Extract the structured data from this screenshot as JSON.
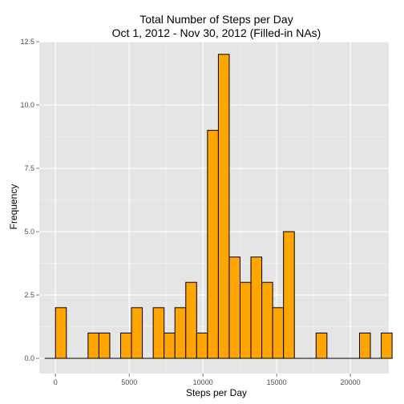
{
  "chart_data": {
    "type": "bar",
    "title": "Total Number of Steps per Day",
    "subtitle": "Oct 1, 2012 - Nov 30, 2012 (Filled-in NAs)",
    "xlabel": "Steps per Day",
    "ylabel": "Frequency",
    "xlim": [
      -1100,
      22600
    ],
    "ylim": [
      -0.6,
      12.5
    ],
    "bin_width": 736.25,
    "x_ticks": [
      0,
      5000,
      10000,
      15000,
      20000
    ],
    "x_tick_labels": [
      "0",
      "5000",
      "10000",
      "15000",
      "20000"
    ],
    "y_ticks": [
      0.0,
      2.5,
      5.0,
      7.5,
      10.0,
      12.5
    ],
    "y_tick_labels": [
      "0.0",
      "2.5",
      "5.0",
      "7.5",
      "10.0",
      "12.5"
    ],
    "bins": [
      {
        "x": -368,
        "count": 0
      },
      {
        "x": 368,
        "count": 2
      },
      {
        "x": 1105,
        "count": 0
      },
      {
        "x": 1841,
        "count": 0
      },
      {
        "x": 2577,
        "count": 1
      },
      {
        "x": 3313,
        "count": 1
      },
      {
        "x": 4050,
        "count": 0
      },
      {
        "x": 4786,
        "count": 1
      },
      {
        "x": 5522,
        "count": 2
      },
      {
        "x": 6258,
        "count": 0
      },
      {
        "x": 6995,
        "count": 2
      },
      {
        "x": 7731,
        "count": 1
      },
      {
        "x": 8467,
        "count": 2
      },
      {
        "x": 9204,
        "count": 3
      },
      {
        "x": 9940,
        "count": 1
      },
      {
        "x": 10676,
        "count": 9
      },
      {
        "x": 11412,
        "count": 12
      },
      {
        "x": 12149,
        "count": 4
      },
      {
        "x": 12885,
        "count": 3
      },
      {
        "x": 13621,
        "count": 4
      },
      {
        "x": 14358,
        "count": 3
      },
      {
        "x": 15094,
        "count": 2
      },
      {
        "x": 15830,
        "count": 5
      },
      {
        "x": 16566,
        "count": 0
      },
      {
        "x": 17303,
        "count": 0
      },
      {
        "x": 18039,
        "count": 1
      },
      {
        "x": 18775,
        "count": 0
      },
      {
        "x": 19512,
        "count": 0
      },
      {
        "x": 20248,
        "count": 0
      },
      {
        "x": 20984,
        "count": 1
      },
      {
        "x": 21720,
        "count": 0
      },
      {
        "x": 22457,
        "count": 1
      }
    ],
    "colors": {
      "panel": "#e5e5e5",
      "grid_major": "#ffffff",
      "grid_minor": "#f2f2f2",
      "bar_fill": "#ffa500",
      "bar_stroke": "#000000"
    },
    "grid": true,
    "legend": "none"
  }
}
